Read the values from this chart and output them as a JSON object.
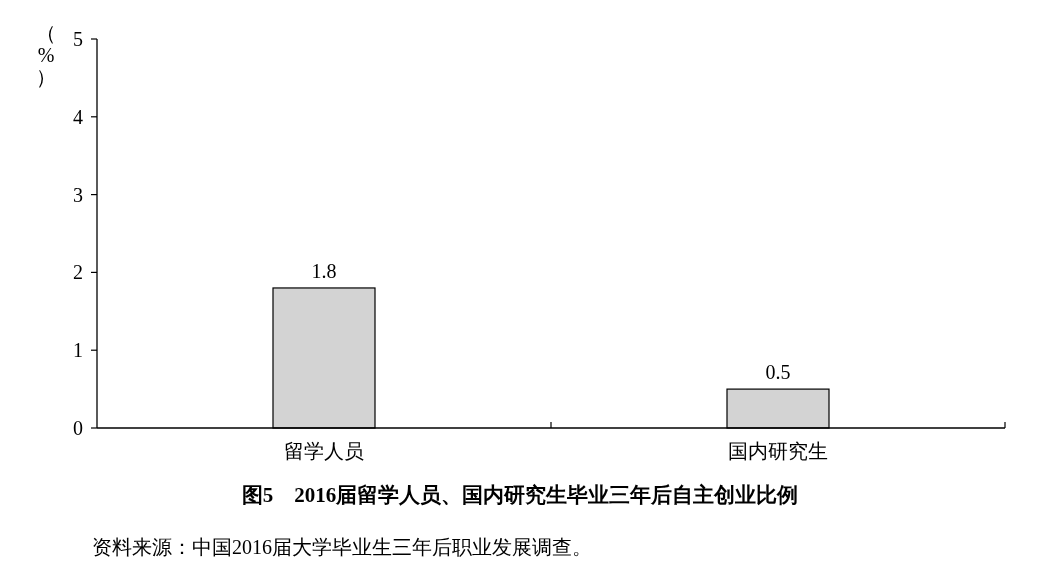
{
  "chart_data": {
    "type": "bar",
    "title": "图5　2016届留学人员、国内研究生毕业三年后自主创业比例",
    "ylabel": "（%）",
    "categories": [
      "留学人员",
      "国内研究生"
    ],
    "values": [
      1.8,
      0.5
    ],
    "color": "#d3d3d3",
    "ylim": [
      0,
      5
    ],
    "yticks": [
      0,
      1,
      2,
      3,
      4,
      5
    ],
    "data_labels": true,
    "annotations": [
      "资料来源：中国2016届大学毕业生三年后职业发展调查。"
    ]
  }
}
